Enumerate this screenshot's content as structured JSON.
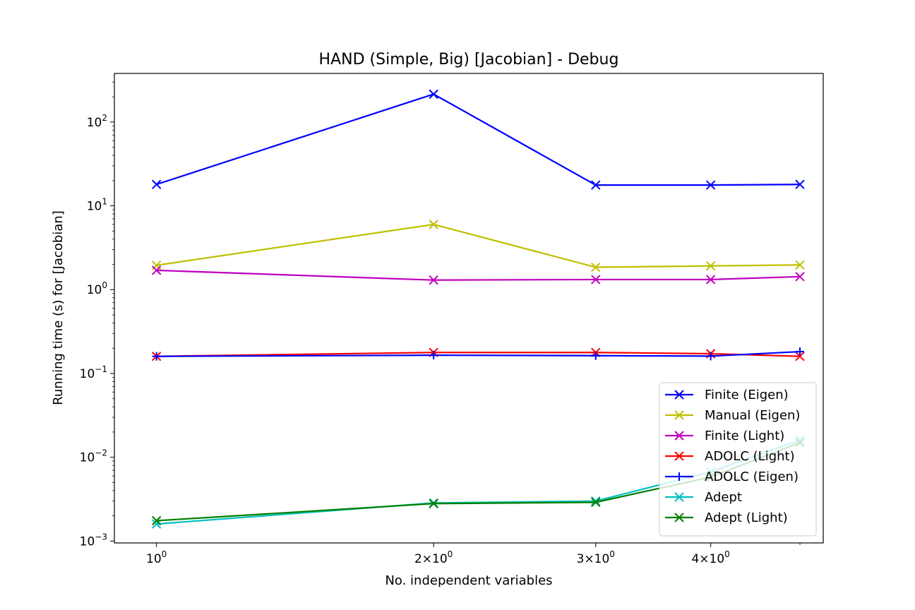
{
  "chart_data": {
    "type": "line",
    "title": "HAND (Simple, Big) [Jacobian] - Debug",
    "xlabel": "No. independent variables",
    "ylabel": "Running time (s) for [Jacobian]",
    "xscale": "log",
    "yscale": "log",
    "xlim": [
      0.9,
      5.3
    ],
    "ylim": [
      0.00095,
      380
    ],
    "x": [
      1,
      2,
      3,
      4,
      5
    ],
    "xticks": [
      {
        "value": 1,
        "base": "10",
        "exp": "0",
        "mult": ""
      },
      {
        "value": 2,
        "base": "10",
        "exp": "0",
        "mult": "2×"
      },
      {
        "value": 3,
        "base": "10",
        "exp": "0",
        "mult": "3×"
      },
      {
        "value": 4,
        "base": "10",
        "exp": "0",
        "mult": "4×"
      }
    ],
    "yticks": [
      {
        "value": 0.001,
        "base": "10",
        "exp": "−3"
      },
      {
        "value": 0.01,
        "base": "10",
        "exp": "−2"
      },
      {
        "value": 0.1,
        "base": "10",
        "exp": "−1"
      },
      {
        "value": 1,
        "base": "10",
        "exp": "0"
      },
      {
        "value": 10,
        "base": "10",
        "exp": "1"
      },
      {
        "value": 100,
        "base": "10",
        "exp": "2"
      }
    ],
    "grid": false,
    "legend_position": "lower-right",
    "series": [
      {
        "name": "Finite (Eigen)",
        "color": "#0000ff",
        "marker": "x",
        "values": [
          18,
          215,
          17.7,
          17.7,
          18
        ]
      },
      {
        "name": "Manual (Eigen)",
        "color": "#bfbf00",
        "marker": "x",
        "values": [
          1.95,
          6,
          1.85,
          1.92,
          1.97
        ]
      },
      {
        "name": "Finite (Light)",
        "color": "#bf00bf",
        "marker": "x",
        "values": [
          1.7,
          1.3,
          1.32,
          1.32,
          1.43
        ]
      },
      {
        "name": "ADOLC (Light)",
        "color": "#ff0000",
        "marker": "x",
        "values": [
          0.16,
          0.178,
          0.178,
          0.172,
          0.16
        ]
      },
      {
        "name": "ADOLC (Eigen)",
        "color": "#0000ff",
        "marker": "+",
        "values": [
          0.16,
          0.165,
          0.163,
          0.161,
          0.182
        ]
      },
      {
        "name": "Adept",
        "color": "#00bfbf",
        "marker": "x",
        "values": [
          0.0016,
          0.00285,
          0.003,
          0.0067,
          0.016
        ]
      },
      {
        "name": "Adept (Light)",
        "color": "#008000",
        "marker": "x",
        "values": [
          0.00175,
          0.0028,
          0.0029,
          0.0058,
          0.015
        ]
      }
    ]
  }
}
